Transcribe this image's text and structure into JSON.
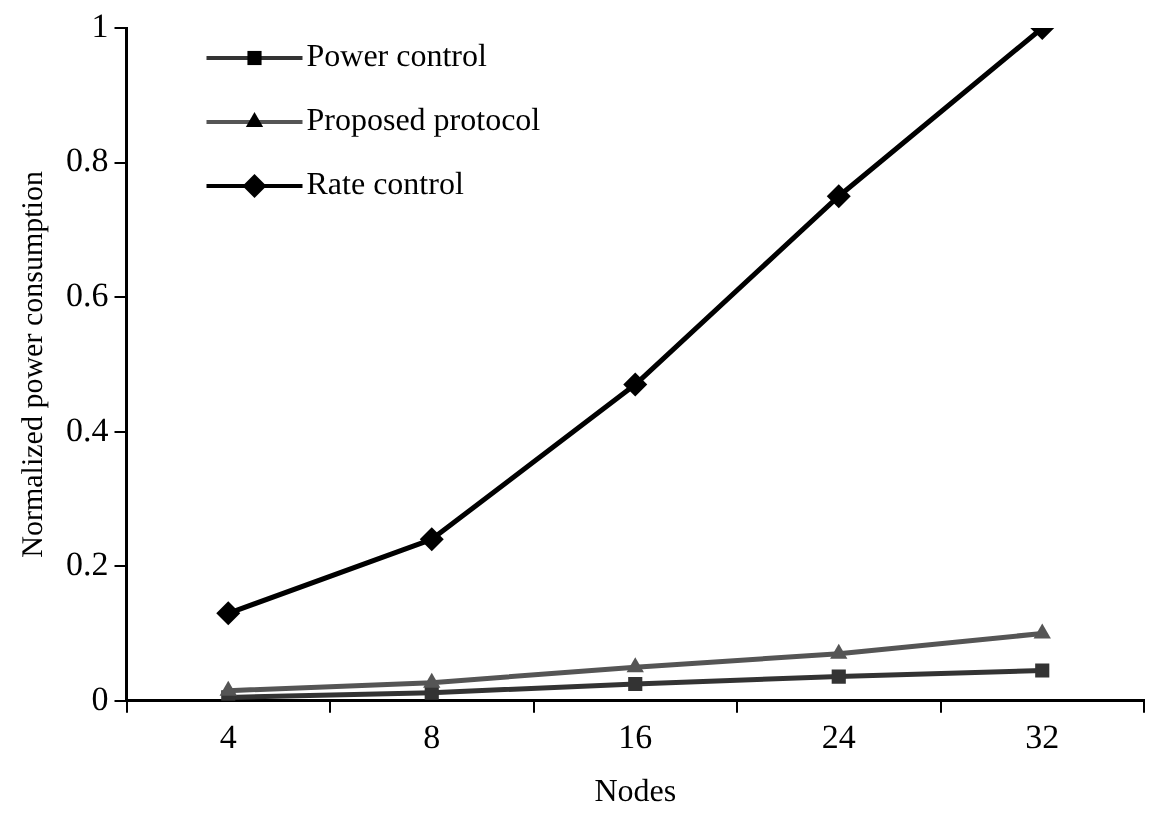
{
  "chart_data": {
    "type": "line",
    "xlabel": "Nodes",
    "ylabel": "Normalized power consumption",
    "categories": [
      "4",
      "8",
      "16",
      "24",
      "32"
    ],
    "series": [
      {
        "name": "Power control",
        "color": "#333333",
        "marker": "square",
        "values": [
          0.005,
          0.012,
          0.025,
          0.036,
          0.045
        ]
      },
      {
        "name": "Proposed protocol",
        "color": "#555555",
        "marker": "triangle",
        "values": [
          0.015,
          0.027,
          0.05,
          0.07,
          0.1
        ]
      },
      {
        "name": "Rate control",
        "color": "#000000",
        "marker": "diamond",
        "values": [
          0.13,
          0.24,
          0.47,
          0.75,
          1.0
        ]
      }
    ],
    "ylim": [
      0,
      1
    ],
    "yticks": [
      0,
      0.2,
      0.4,
      0.6,
      0.8,
      1
    ],
    "grid": false,
    "legend": "top left",
    "line_style": "solid"
  }
}
